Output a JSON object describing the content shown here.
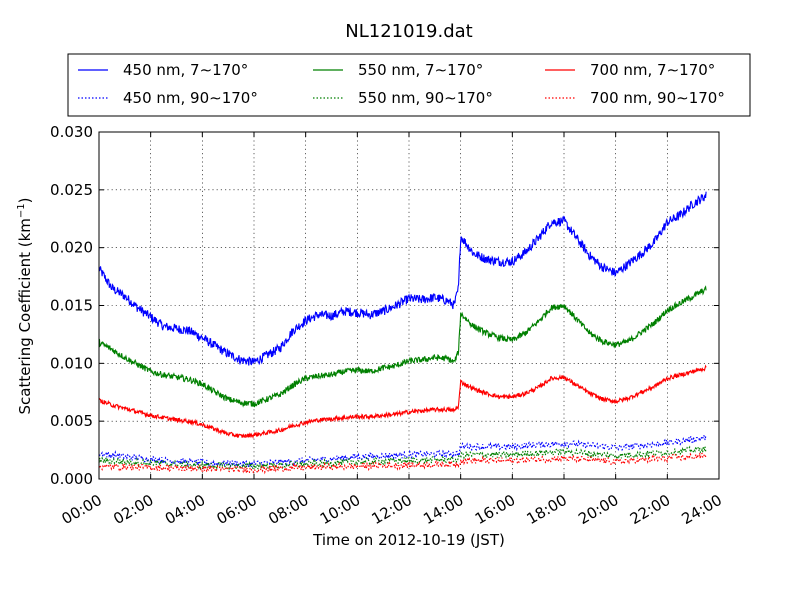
{
  "chart_data": {
    "type": "line",
    "title": "NL121019.dat",
    "xlabel": "Time on 2012-10-19 (JST)",
    "ylabel_main": "Scattering Coefficient (km",
    "ylabel_sup": "−1",
    "ylabel_close": ")",
    "xlim": [
      "00:00",
      "24:00"
    ],
    "ylim": [
      0,
      0.03
    ],
    "x_ticks": [
      "00:00",
      "02:00",
      "04:00",
      "06:00",
      "08:00",
      "10:00",
      "12:00",
      "14:00",
      "16:00",
      "18:00",
      "20:00",
      "22:00",
      "24:00"
    ],
    "y_ticks": [
      "0.000",
      "0.005",
      "0.010",
      "0.015",
      "0.020",
      "0.025",
      "0.030"
    ],
    "grid": true,
    "legend_position": "top",
    "series": [
      {
        "name": "450 nm, 7∼170°",
        "color": "#0000ff",
        "dash": "solid",
        "x": [
          "00:00",
          "00:30",
          "01:00",
          "01:30",
          "02:00",
          "02:30",
          "03:00",
          "03:30",
          "04:00",
          "04:30",
          "05:00",
          "05:30",
          "06:00",
          "06:30",
          "07:00",
          "07:30",
          "08:00",
          "08:30",
          "09:00",
          "09:30",
          "10:00",
          "10:30",
          "11:00",
          "11:30",
          "12:00",
          "12:30",
          "13:00",
          "13:30",
          "13:45",
          "13:55",
          "14:00",
          "14:30",
          "15:00",
          "15:30",
          "16:00",
          "16:30",
          "17:00",
          "17:30",
          "18:00",
          "18:30",
          "19:00",
          "19:30",
          "20:00",
          "20:30",
          "21:00",
          "21:30",
          "22:00",
          "22:30",
          "23:00",
          "23:30"
        ],
        "y": [
          0.0182,
          0.0165,
          0.0158,
          0.0148,
          0.014,
          0.0132,
          0.013,
          0.0128,
          0.0122,
          0.0115,
          0.0108,
          0.0103,
          0.0101,
          0.0107,
          0.0113,
          0.0128,
          0.0137,
          0.0142,
          0.0141,
          0.0145,
          0.0144,
          0.0142,
          0.0145,
          0.015,
          0.0156,
          0.0155,
          0.0157,
          0.0154,
          0.015,
          0.0165,
          0.021,
          0.0195,
          0.019,
          0.0188,
          0.0188,
          0.0196,
          0.0208,
          0.0222,
          0.0223,
          0.0208,
          0.0193,
          0.0183,
          0.0178,
          0.0186,
          0.0195,
          0.0205,
          0.0222,
          0.0228,
          0.0238,
          0.0245
        ]
      },
      {
        "name": "450 nm, 90∼170°",
        "color": "#0000ff",
        "dash": "dotted",
        "x": [
          "00:00",
          "02:00",
          "04:00",
          "06:00",
          "08:00",
          "10:00",
          "12:00",
          "13:55",
          "14:00",
          "16:00",
          "18:00",
          "20:00",
          "22:00",
          "23:30"
        ],
        "y": [
          0.0022,
          0.0017,
          0.0014,
          0.0013,
          0.0016,
          0.0019,
          0.0021,
          0.0022,
          0.0028,
          0.0028,
          0.0031,
          0.0027,
          0.0031,
          0.0036
        ]
      },
      {
        "name": "550 nm, 7∼170°",
        "color": "#008000",
        "dash": "solid",
        "x": [
          "00:00",
          "00:30",
          "01:00",
          "01:30",
          "02:00",
          "02:30",
          "03:00",
          "03:30",
          "04:00",
          "04:30",
          "05:00",
          "05:30",
          "06:00",
          "06:30",
          "07:00",
          "07:30",
          "08:00",
          "08:30",
          "09:00",
          "09:30",
          "10:00",
          "10:30",
          "11:00",
          "11:30",
          "12:00",
          "12:30",
          "13:00",
          "13:30",
          "13:45",
          "13:55",
          "14:00",
          "14:30",
          "15:00",
          "15:30",
          "16:00",
          "16:30",
          "17:00",
          "17:30",
          "18:00",
          "18:30",
          "19:00",
          "19:30",
          "20:00",
          "20:30",
          "21:00",
          "21:30",
          "22:00",
          "22:30",
          "23:00",
          "23:30"
        ],
        "y": [
          0.0118,
          0.0112,
          0.0105,
          0.0099,
          0.0093,
          0.009,
          0.0088,
          0.0086,
          0.0082,
          0.0075,
          0.0069,
          0.0066,
          0.0065,
          0.0069,
          0.0073,
          0.0081,
          0.0087,
          0.0089,
          0.009,
          0.0093,
          0.0094,
          0.0093,
          0.0096,
          0.0098,
          0.0102,
          0.0103,
          0.0105,
          0.0104,
          0.0101,
          0.011,
          0.0143,
          0.0132,
          0.0126,
          0.0122,
          0.012,
          0.0126,
          0.0136,
          0.0148,
          0.015,
          0.0138,
          0.0126,
          0.0119,
          0.0116,
          0.0119,
          0.0127,
          0.0135,
          0.0146,
          0.0152,
          0.0158,
          0.0164
        ]
      },
      {
        "name": "550 nm, 90∼170°",
        "color": "#008000",
        "dash": "dotted",
        "x": [
          "00:00",
          "02:00",
          "04:00",
          "06:00",
          "08:00",
          "10:00",
          "12:00",
          "13:55",
          "14:00",
          "16:00",
          "18:00",
          "20:00",
          "22:00",
          "23:30"
        ],
        "y": [
          0.0016,
          0.0014,
          0.0012,
          0.0011,
          0.0013,
          0.0015,
          0.0016,
          0.0017,
          0.0021,
          0.0021,
          0.0024,
          0.002,
          0.0023,
          0.0026
        ]
      },
      {
        "name": "700 nm, 7∼170°",
        "color": "#ff0000",
        "dash": "solid",
        "x": [
          "00:00",
          "00:30",
          "01:00",
          "01:30",
          "02:00",
          "02:30",
          "03:00",
          "03:30",
          "04:00",
          "04:30",
          "05:00",
          "05:30",
          "06:00",
          "06:30",
          "07:00",
          "07:30",
          "08:00",
          "08:30",
          "09:00",
          "09:30",
          "10:00",
          "10:30",
          "11:00",
          "11:30",
          "12:00",
          "12:30",
          "13:00",
          "13:30",
          "13:45",
          "13:55",
          "14:00",
          "14:30",
          "15:00",
          "15:30",
          "16:00",
          "16:30",
          "17:00",
          "17:30",
          "18:00",
          "18:30",
          "19:00",
          "19:30",
          "20:00",
          "20:30",
          "21:00",
          "21:30",
          "22:00",
          "22:30",
          "23:00",
          "23:30"
        ],
        "y": [
          0.0068,
          0.0064,
          0.0061,
          0.0058,
          0.0055,
          0.0053,
          0.0051,
          0.005,
          0.0047,
          0.0043,
          0.0039,
          0.0037,
          0.0038,
          0.004,
          0.0042,
          0.0046,
          0.0049,
          0.0051,
          0.0052,
          0.0053,
          0.0054,
          0.0054,
          0.0055,
          0.0056,
          0.0058,
          0.0059,
          0.006,
          0.006,
          0.0059,
          0.0063,
          0.0084,
          0.0078,
          0.0074,
          0.0071,
          0.0071,
          0.0074,
          0.0079,
          0.0087,
          0.0088,
          0.0081,
          0.0074,
          0.0069,
          0.0067,
          0.007,
          0.0075,
          0.008,
          0.0087,
          0.009,
          0.0093,
          0.0096
        ]
      },
      {
        "name": "700 nm, 90∼170°",
        "color": "#ff0000",
        "dash": "dotted",
        "x": [
          "00:00",
          "02:00",
          "04:00",
          "06:00",
          "08:00",
          "10:00",
          "12:00",
          "13:55",
          "14:00",
          "16:00",
          "18:00",
          "20:00",
          "22:00",
          "23:30"
        ],
        "y": [
          0.0011,
          0.001,
          0.0009,
          0.0008,
          0.001,
          0.0011,
          0.0012,
          0.0013,
          0.0016,
          0.0016,
          0.0018,
          0.0015,
          0.0018,
          0.002
        ]
      }
    ]
  }
}
